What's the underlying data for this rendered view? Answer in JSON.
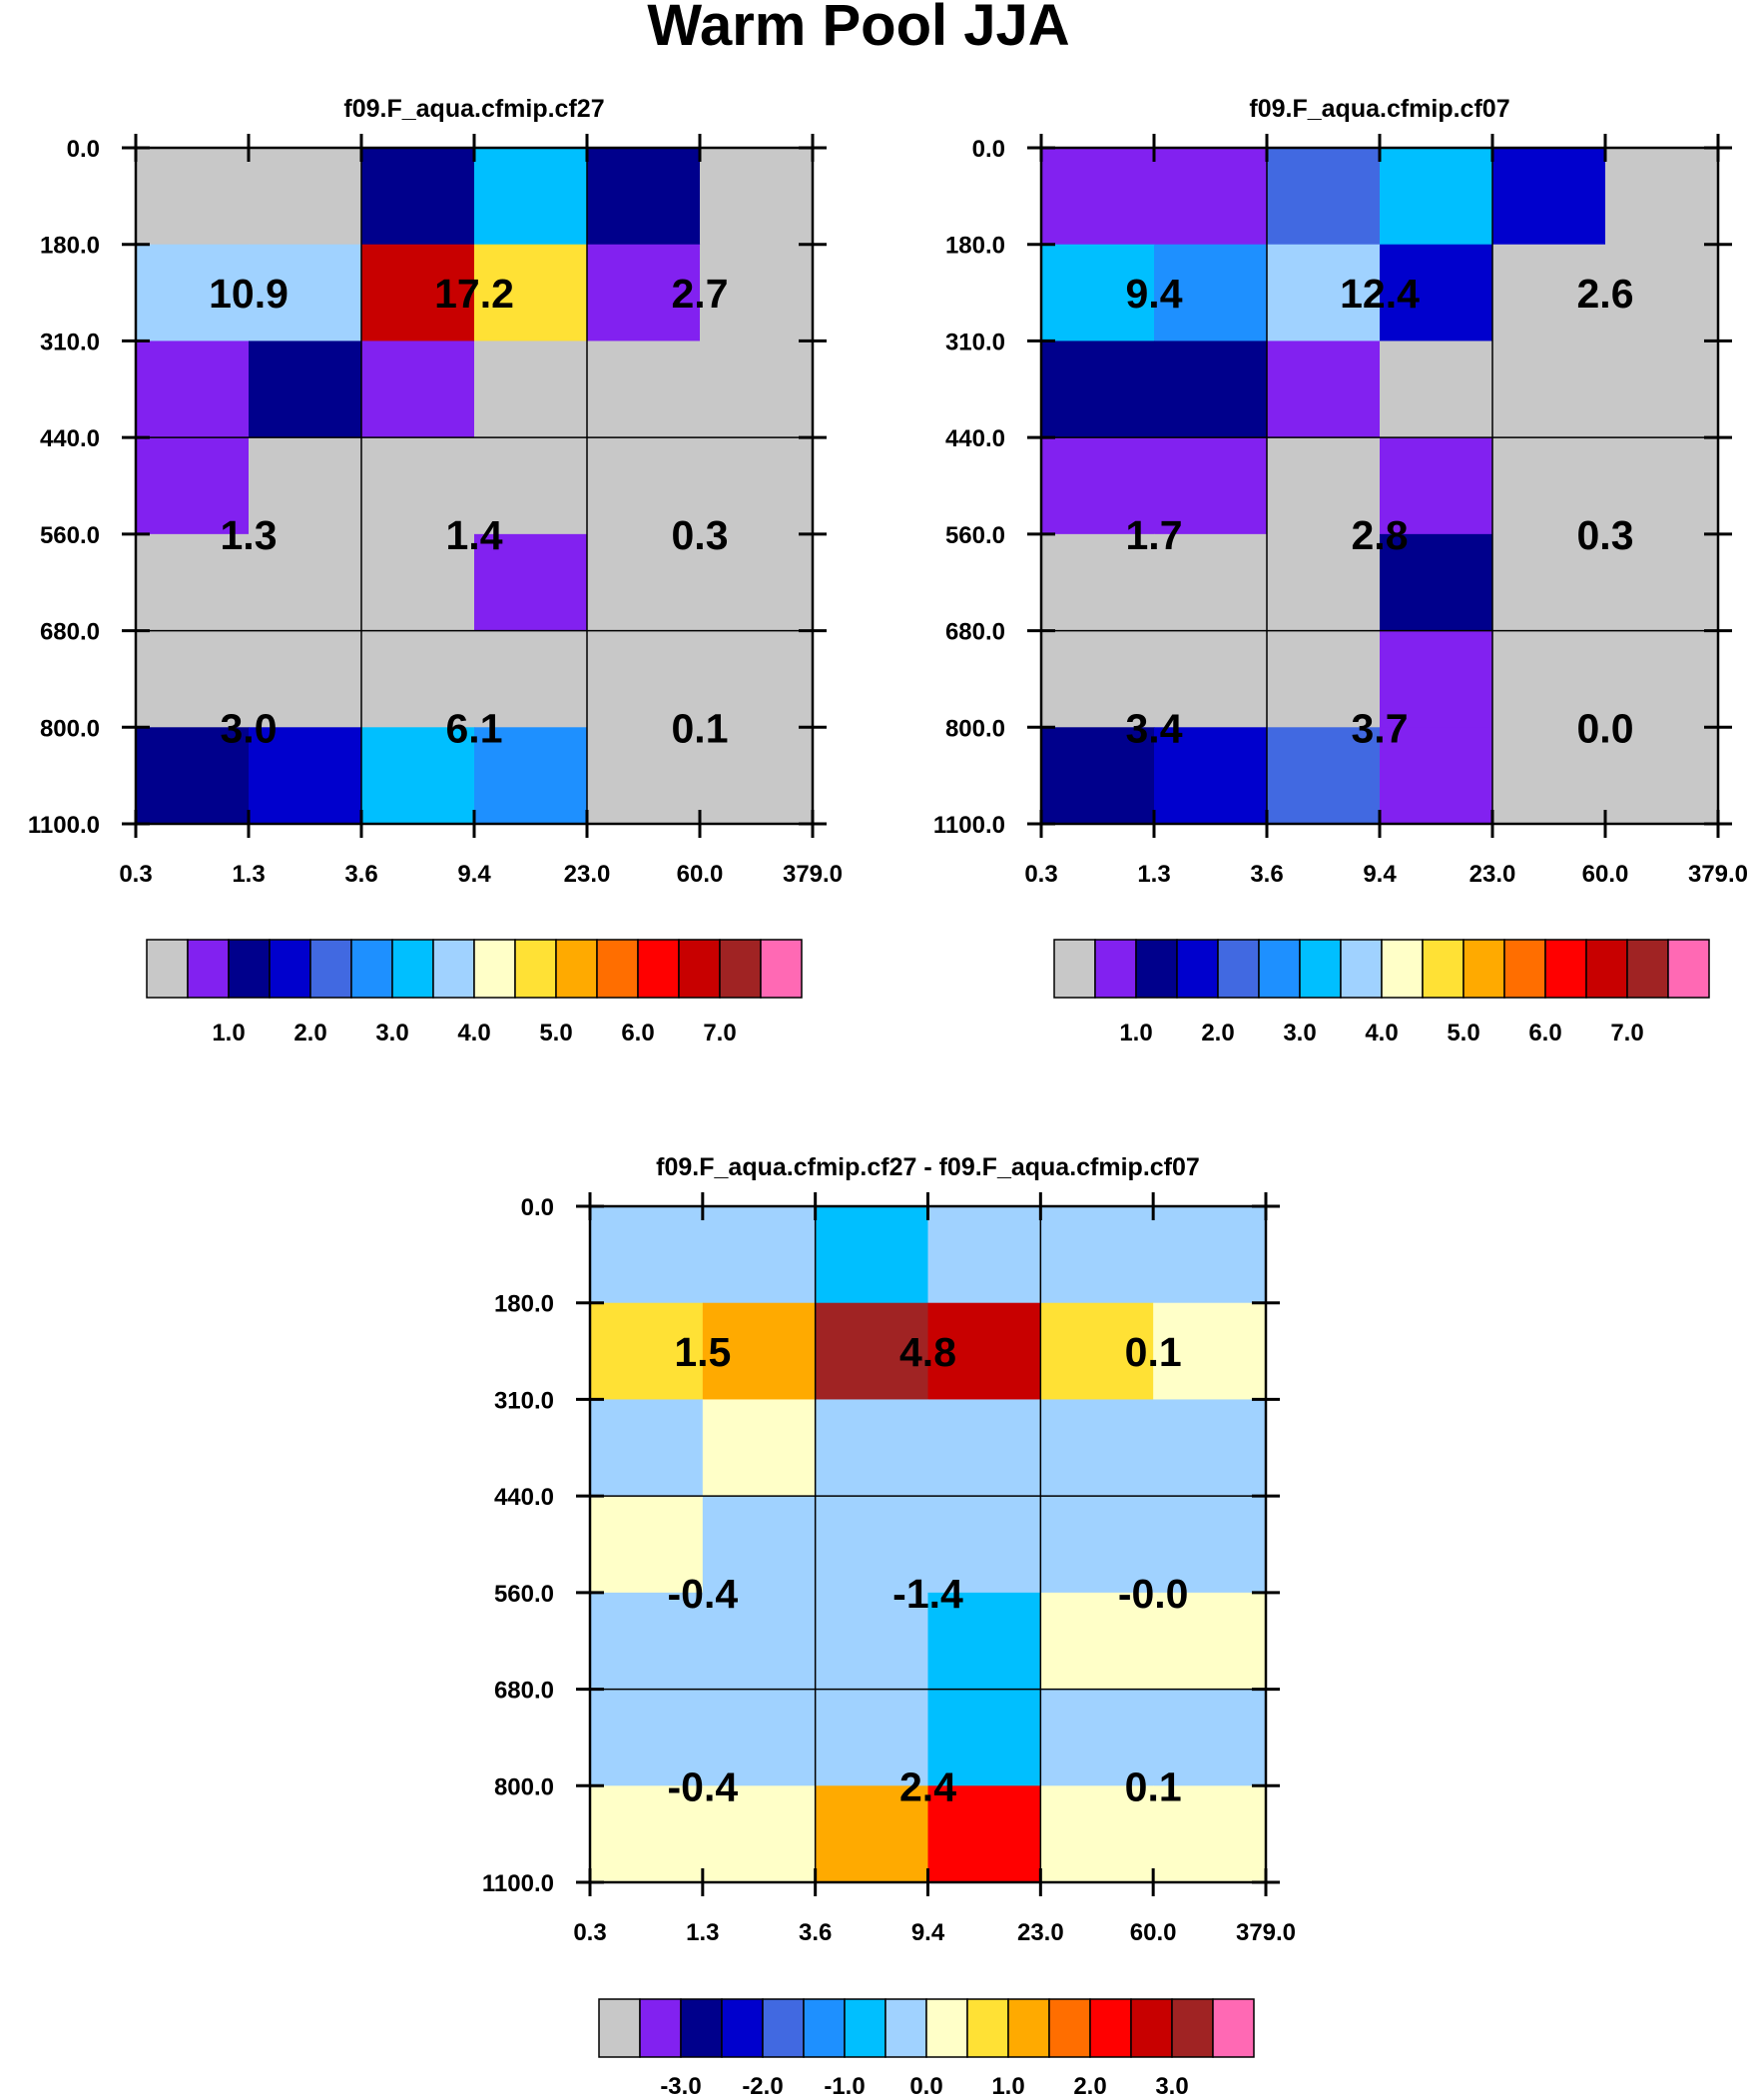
{
  "figure_title": "Warm Pool JJA",
  "colors": {
    "palette": [
      "#c8c8c8",
      "#8221f0",
      "#00008c",
      "#0000cd",
      "#4169e1",
      "#1e90ff",
      "#00bfff",
      "#a0d2ff",
      "#ffffc8",
      "#ffe135",
      "#ffaa00",
      "#ff6e00",
      "#ff0000",
      "#c80000",
      "#a02323",
      "#ff69b4"
    ],
    "grid_line": "#000000",
    "background": "#ffffff"
  },
  "chart_data": [
    {
      "type": "heatmap",
      "title": "f09.F_aqua.cfmip.cf27",
      "x_tick_labels": [
        "0.3",
        "1.3",
        "3.6",
        "9.4",
        "23.0",
        "60.0",
        "379.0"
      ],
      "y_tick_labels": [
        "0.0",
        "180.0",
        "310.0",
        "440.0",
        "560.0",
        "680.0",
        "800.0",
        "1100.0"
      ],
      "cell_color_index": [
        [
          0,
          0,
          2,
          6,
          2,
          0
        ],
        [
          7,
          7,
          13,
          9,
          1,
          0
        ],
        [
          1,
          2,
          1,
          0,
          0,
          0
        ],
        [
          1,
          0,
          0,
          0,
          0,
          0
        ],
        [
          0,
          0,
          0,
          1,
          0,
          0
        ],
        [
          0,
          0,
          0,
          0,
          0,
          0
        ],
        [
          2,
          3,
          6,
          5,
          0,
          0
        ]
      ],
      "block_values": [
        [
          "10.9",
          "17.2",
          "2.7"
        ],
        [
          "1.3",
          "1.4",
          "0.3"
        ],
        [
          "3.0",
          "6.1",
          "0.1"
        ]
      ],
      "colorbar_ticks": [
        "1.0",
        "2.0",
        "3.0",
        "4.0",
        "5.0",
        "6.0",
        "7.0"
      ]
    },
    {
      "type": "heatmap",
      "title": "f09.F_aqua.cfmip.cf07",
      "x_tick_labels": [
        "0.3",
        "1.3",
        "3.6",
        "9.4",
        "23.0",
        "60.0",
        "379.0"
      ],
      "y_tick_labels": [
        "0.0",
        "180.0",
        "310.0",
        "440.0",
        "560.0",
        "680.0",
        "800.0",
        "1100.0"
      ],
      "cell_color_index": [
        [
          1,
          1,
          4,
          6,
          3,
          0
        ],
        [
          6,
          5,
          7,
          3,
          0,
          0
        ],
        [
          2,
          2,
          1,
          0,
          0,
          0
        ],
        [
          1,
          1,
          0,
          1,
          0,
          0
        ],
        [
          0,
          0,
          0,
          2,
          0,
          0
        ],
        [
          0,
          0,
          0,
          1,
          0,
          0
        ],
        [
          2,
          3,
          4,
          1,
          0,
          0
        ]
      ],
      "block_values": [
        [
          "9.4",
          "12.4",
          "2.6"
        ],
        [
          "1.7",
          "2.8",
          "0.3"
        ],
        [
          "3.4",
          "3.7",
          "0.0"
        ]
      ],
      "colorbar_ticks": [
        "1.0",
        "2.0",
        "3.0",
        "4.0",
        "5.0",
        "6.0",
        "7.0"
      ]
    },
    {
      "type": "heatmap",
      "title": "f09.F_aqua.cfmip.cf27 - f09.F_aqua.cfmip.cf07",
      "x_tick_labels": [
        "0.3",
        "1.3",
        "3.6",
        "9.4",
        "23.0",
        "60.0",
        "379.0"
      ],
      "y_tick_labels": [
        "0.0",
        "180.0",
        "310.0",
        "440.0",
        "560.0",
        "680.0",
        "800.0",
        "1100.0"
      ],
      "cell_color_index": [
        [
          7,
          7,
          6,
          7,
          7,
          7
        ],
        [
          9,
          10,
          14,
          13,
          9,
          8
        ],
        [
          7,
          8,
          7,
          7,
          7,
          7
        ],
        [
          8,
          7,
          7,
          7,
          7,
          7
        ],
        [
          7,
          7,
          7,
          6,
          8,
          8
        ],
        [
          7,
          7,
          7,
          6,
          7,
          7
        ],
        [
          8,
          8,
          10,
          12,
          8,
          8
        ]
      ],
      "block_values": [
        [
          "1.5",
          "4.8",
          "0.1"
        ],
        [
          "-0.4",
          "-1.4",
          "-0.0"
        ],
        [
          "-0.4",
          "2.4",
          "0.1"
        ]
      ],
      "colorbar_ticks": [
        "-3.0",
        "-2.0",
        "-1.0",
        "0.0",
        "1.0",
        "2.0",
        "3.0"
      ]
    }
  ]
}
